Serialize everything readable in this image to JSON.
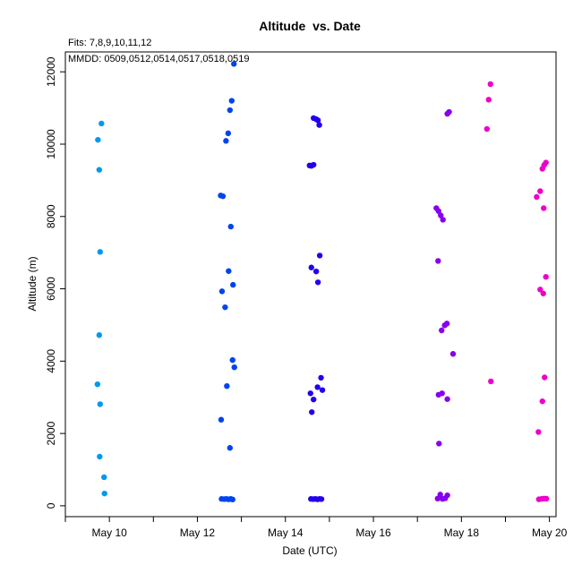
{
  "chart_data": {
    "type": "scatter",
    "title": "Altitude  vs. Date",
    "subtitle": "Fits: 7,8,9,10,11,12",
    "annotation": "MMDD: 0509,0512,0514,0517,0518,0519",
    "xlabel": "Date (UTC)",
    "ylabel": "Altitude (m)",
    "x_ticks": [
      9,
      10,
      11,
      12,
      13,
      14,
      15,
      16,
      17,
      18,
      19,
      20
    ],
    "x_tick_labels": [
      "",
      "May 10",
      "",
      "May 12",
      "",
      "May 14",
      "",
      "May 16",
      "",
      "May 18",
      "",
      "May 20"
    ],
    "y_ticks": [
      0,
      2000,
      4000,
      6000,
      8000,
      10000,
      12000
    ],
    "y_tick_labels": [
      "0",
      "2000",
      "4000",
      "6000",
      "8000",
      "10000",
      "12000"
    ],
    "xlim": [
      9.0,
      20.15
    ],
    "ylim": [
      -300,
      12550
    ],
    "grid": false,
    "legend": "none",
    "series": [
      {
        "color": "#0099ee",
        "points": [
          [
            9.74,
            10120
          ],
          [
            9.82,
            10570
          ],
          [
            9.77,
            9290
          ],
          [
            9.79,
            7020
          ],
          [
            9.77,
            4720
          ],
          [
            9.73,
            3360
          ],
          [
            9.79,
            2810
          ],
          [
            9.78,
            1360
          ],
          [
            9.88,
            790
          ],
          [
            9.89,
            340
          ]
        ]
      },
      {
        "color": "#0044ee",
        "points": [
          [
            12.83,
            12220
          ],
          [
            12.78,
            11200
          ],
          [
            12.74,
            10940
          ],
          [
            12.7,
            10300
          ],
          [
            12.65,
            10090
          ],
          [
            12.53,
            8580
          ],
          [
            12.58,
            8560
          ],
          [
            12.76,
            7720
          ],
          [
            12.71,
            6490
          ],
          [
            12.81,
            6110
          ],
          [
            12.56,
            5930
          ],
          [
            12.63,
            5490
          ],
          [
            12.8,
            4030
          ],
          [
            12.84,
            3830
          ],
          [
            12.67,
            3310
          ],
          [
            12.54,
            2380
          ],
          [
            12.74,
            1600
          ],
          [
            12.55,
            190
          ],
          [
            12.61,
            185
          ],
          [
            12.66,
            190
          ],
          [
            12.71,
            180
          ],
          [
            12.76,
            190
          ],
          [
            12.8,
            175
          ]
        ]
      },
      {
        "color": "#2200ee",
        "points": [
          [
            14.64,
            10720
          ],
          [
            14.7,
            10690
          ],
          [
            14.74,
            10660
          ],
          [
            14.77,
            10530
          ],
          [
            14.55,
            9410
          ],
          [
            14.59,
            9400
          ],
          [
            14.64,
            9430
          ],
          [
            14.78,
            6920
          ],
          [
            14.59,
            6590
          ],
          [
            14.7,
            6480
          ],
          [
            14.74,
            6180
          ],
          [
            14.81,
            3540
          ],
          [
            14.73,
            3280
          ],
          [
            14.84,
            3200
          ],
          [
            14.57,
            3110
          ],
          [
            14.64,
            2940
          ],
          [
            14.6,
            2590
          ],
          [
            14.58,
            190
          ],
          [
            14.63,
            185
          ],
          [
            14.68,
            190
          ],
          [
            14.73,
            180
          ],
          [
            14.78,
            190
          ],
          [
            14.82,
            185
          ]
        ]
      },
      {
        "color": "#8800ee",
        "points": [
          [
            17.72,
            10890
          ],
          [
            17.68,
            10840
          ],
          [
            17.43,
            8230
          ],
          [
            17.48,
            8150
          ],
          [
            17.53,
            8030
          ],
          [
            17.58,
            7910
          ],
          [
            17.47,
            6770
          ],
          [
            17.55,
            4850
          ],
          [
            17.62,
            4990
          ],
          [
            17.67,
            5040
          ],
          [
            17.81,
            4200
          ],
          [
            17.48,
            3070
          ],
          [
            17.56,
            3110
          ],
          [
            17.68,
            2950
          ],
          [
            17.49,
            1720
          ],
          [
            17.46,
            200
          ],
          [
            17.52,
            310
          ],
          [
            17.57,
            190
          ],
          [
            17.63,
            205
          ],
          [
            17.68,
            290
          ]
        ]
      },
      {
        "color": "#ee00cc",
        "points": [
          [
            18.66,
            11660
          ],
          [
            18.62,
            11230
          ],
          [
            18.58,
            10420
          ],
          [
            18.67,
            3440
          ],
          [
            19.92,
            9490
          ],
          [
            19.88,
            9420
          ],
          [
            19.84,
            9320
          ],
          [
            19.71,
            8540
          ],
          [
            19.79,
            8700
          ],
          [
            19.87,
            8230
          ],
          [
            19.92,
            6330
          ],
          [
            19.79,
            5980
          ],
          [
            19.86,
            5870
          ],
          [
            19.89,
            3550
          ],
          [
            19.84,
            2890
          ],
          [
            19.75,
            2040
          ],
          [
            19.76,
            180
          ],
          [
            19.82,
            190
          ],
          [
            19.88,
            200
          ],
          [
            19.93,
            195
          ]
        ]
      }
    ]
  }
}
